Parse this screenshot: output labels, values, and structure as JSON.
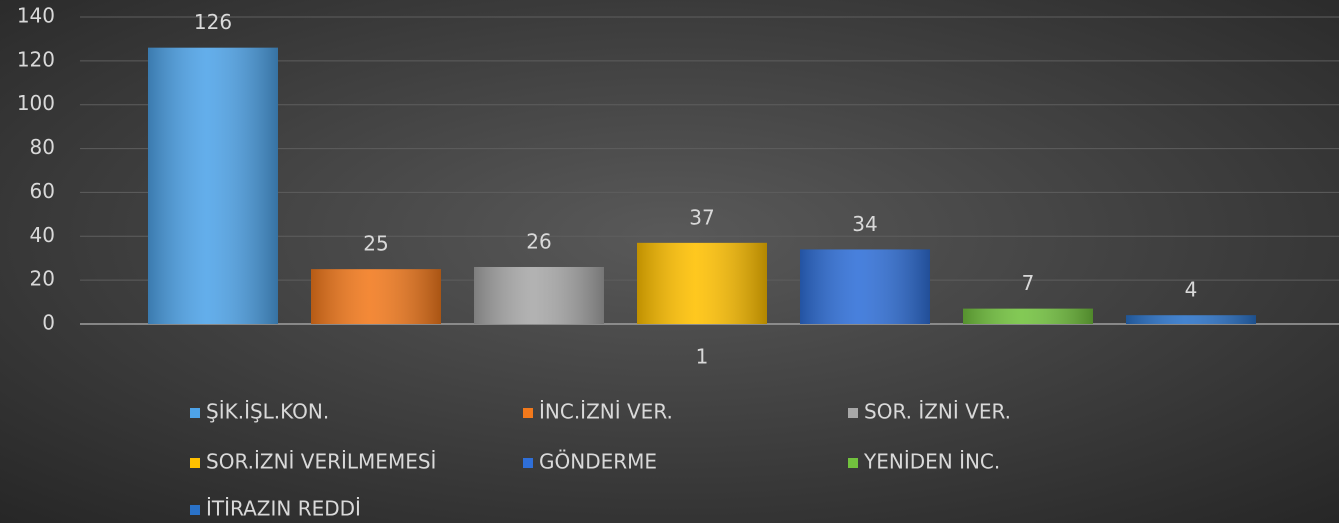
{
  "chart_data": {
    "type": "bar",
    "categories": [
      "1"
    ],
    "series": [
      {
        "name": "ŞİK.İŞL.KON.",
        "color": "#4ea3e8",
        "values": [
          126
        ]
      },
      {
        "name": "İNC.İZNİ VER.",
        "color": "#f2791c",
        "values": [
          25
        ]
      },
      {
        "name": "SOR. İZNİ VER.",
        "color": "#a8a8a8",
        "values": [
          26
        ]
      },
      {
        "name": "SOR.İZNİ VERİLMEMESİ",
        "color": "#ffc000",
        "values": [
          37
        ]
      },
      {
        "name": "GÖNDERME",
        "color": "#2f6fd8",
        "values": [
          34
        ]
      },
      {
        "name": "YENİDEN İNC.",
        "color": "#72c23e",
        "values": [
          7
        ]
      },
      {
        "name": "İTİRAZIN REDDİ",
        "color": "#2a72c8",
        "values": [
          4
        ]
      }
    ],
    "ylim": [
      0,
      140
    ],
    "yticks": [
      0,
      20,
      40,
      60,
      80,
      100,
      120,
      140
    ],
    "grid": true
  }
}
